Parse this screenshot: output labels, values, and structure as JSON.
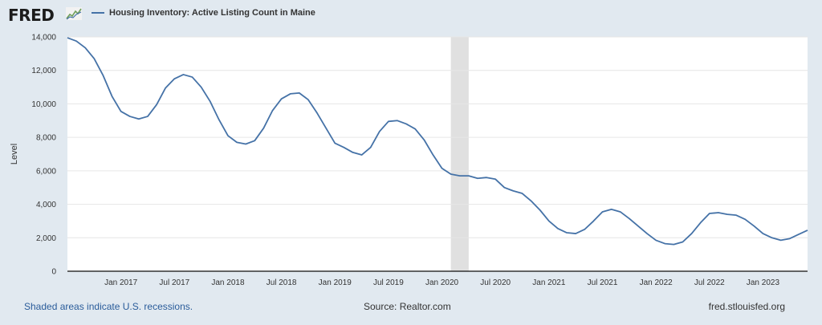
{
  "header": {
    "logo_text": "FRED",
    "legend_label": "Housing Inventory: Active Listing Count in Maine"
  },
  "footer": {
    "recession_note": "Shaded areas indicate U.S. recessions.",
    "source": "Source: Realtor.com",
    "site": "fred.stlouisfed.org"
  },
  "colors": {
    "series": "#4572a7",
    "background": "#e1e9f0",
    "recession": "#e0e0e0"
  },
  "chart_data": {
    "type": "line",
    "title": "Housing Inventory: Active Listing Count in Maine",
    "ylabel": "Level",
    "ylim": [
      0,
      14000
    ],
    "yticks": [
      0,
      2000,
      4000,
      6000,
      8000,
      10000,
      12000,
      14000
    ],
    "ytick_labels": [
      "0",
      "2,000",
      "4,000",
      "6,000",
      "8,000",
      "10,000",
      "12,000",
      "14,000"
    ],
    "xlim": [
      "2016-07",
      "2023-06"
    ],
    "xtick_labels": [
      {
        "date": "2017-01",
        "label": "Jan 2017"
      },
      {
        "date": "2017-07",
        "label": "Jul 2017"
      },
      {
        "date": "2018-01",
        "label": "Jan 2018"
      },
      {
        "date": "2018-07",
        "label": "Jul 2018"
      },
      {
        "date": "2019-01",
        "label": "Jan 2019"
      },
      {
        "date": "2019-07",
        "label": "Jul 2019"
      },
      {
        "date": "2020-01",
        "label": "Jan 2020"
      },
      {
        "date": "2020-07",
        "label": "Jul 2020"
      },
      {
        "date": "2021-01",
        "label": "Jan 2021"
      },
      {
        "date": "2021-07",
        "label": "Jul 2021"
      },
      {
        "date": "2022-01",
        "label": "Jan 2022"
      },
      {
        "date": "2022-07",
        "label": "Jul 2022"
      },
      {
        "date": "2023-01",
        "label": "Jan 2023"
      }
    ],
    "recessions": [
      {
        "start": "2020-02",
        "end": "2020-04"
      }
    ],
    "grid": true,
    "legend": "top-left",
    "series": [
      {
        "name": "Housing Inventory: Active Listing Count in Maine",
        "points": [
          [
            "2016-07",
            13950
          ],
          [
            "2016-08",
            13750
          ],
          [
            "2016-09",
            13350
          ],
          [
            "2016-10",
            12700
          ],
          [
            "2016-11",
            11700
          ],
          [
            "2016-12",
            10450
          ],
          [
            "2017-01",
            9550
          ],
          [
            "2017-02",
            9250
          ],
          [
            "2017-03",
            9100
          ],
          [
            "2017-04",
            9250
          ],
          [
            "2017-05",
            9950
          ],
          [
            "2017-06",
            10950
          ],
          [
            "2017-07",
            11500
          ],
          [
            "2017-08",
            11750
          ],
          [
            "2017-09",
            11600
          ],
          [
            "2017-10",
            11000
          ],
          [
            "2017-11",
            10150
          ],
          [
            "2017-12",
            9050
          ],
          [
            "2018-01",
            8100
          ],
          [
            "2018-02",
            7700
          ],
          [
            "2018-03",
            7600
          ],
          [
            "2018-04",
            7800
          ],
          [
            "2018-05",
            8550
          ],
          [
            "2018-06",
            9600
          ],
          [
            "2018-07",
            10300
          ],
          [
            "2018-08",
            10600
          ],
          [
            "2018-09",
            10650
          ],
          [
            "2018-10",
            10250
          ],
          [
            "2018-11",
            9450
          ],
          [
            "2018-12",
            8550
          ],
          [
            "2019-01",
            7650
          ],
          [
            "2019-02",
            7400
          ],
          [
            "2019-03",
            7100
          ],
          [
            "2019-04",
            6950
          ],
          [
            "2019-05",
            7400
          ],
          [
            "2019-06",
            8350
          ],
          [
            "2019-07",
            8950
          ],
          [
            "2019-08",
            9000
          ],
          [
            "2019-09",
            8800
          ],
          [
            "2019-10",
            8500
          ],
          [
            "2019-11",
            7850
          ],
          [
            "2019-12",
            6950
          ],
          [
            "2020-01",
            6150
          ],
          [
            "2020-02",
            5800
          ],
          [
            "2020-03",
            5700
          ],
          [
            "2020-04",
            5700
          ],
          [
            "2020-05",
            5550
          ],
          [
            "2020-06",
            5600
          ],
          [
            "2020-07",
            5500
          ],
          [
            "2020-08",
            5000
          ],
          [
            "2020-09",
            4800
          ],
          [
            "2020-10",
            4650
          ],
          [
            "2020-11",
            4200
          ],
          [
            "2020-12",
            3650
          ],
          [
            "2021-01",
            3000
          ],
          [
            "2021-02",
            2550
          ],
          [
            "2021-03",
            2300
          ],
          [
            "2021-04",
            2250
          ],
          [
            "2021-05",
            2500
          ],
          [
            "2021-06",
            3000
          ],
          [
            "2021-07",
            3550
          ],
          [
            "2021-08",
            3700
          ],
          [
            "2021-09",
            3550
          ],
          [
            "2021-10",
            3150
          ],
          [
            "2021-11",
            2700
          ],
          [
            "2021-12",
            2250
          ],
          [
            "2022-01",
            1850
          ],
          [
            "2022-02",
            1650
          ],
          [
            "2022-03",
            1600
          ],
          [
            "2022-04",
            1750
          ],
          [
            "2022-05",
            2250
          ],
          [
            "2022-06",
            2900
          ],
          [
            "2022-07",
            3450
          ],
          [
            "2022-08",
            3500
          ],
          [
            "2022-09",
            3400
          ],
          [
            "2022-10",
            3350
          ],
          [
            "2022-11",
            3100
          ],
          [
            "2022-12",
            2700
          ],
          [
            "2023-01",
            2250
          ],
          [
            "2023-02",
            2000
          ],
          [
            "2023-03",
            1850
          ],
          [
            "2023-04",
            1950
          ],
          [
            "2023-05",
            2200
          ],
          [
            "2023-06",
            2450
          ]
        ]
      }
    ]
  }
}
